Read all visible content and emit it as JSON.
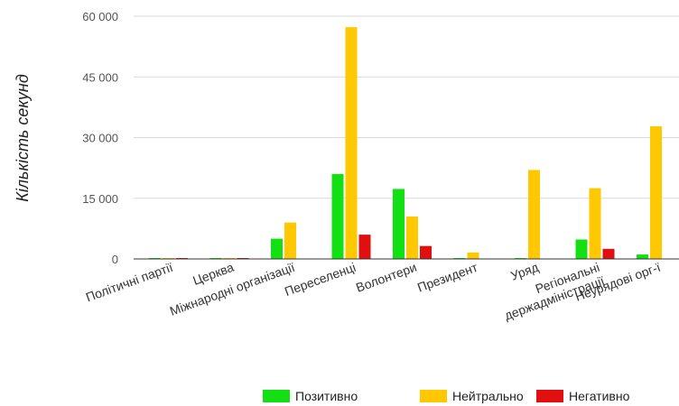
{
  "chart_data": {
    "type": "bar",
    "title": "",
    "xlabel": "",
    "ylabel": "Кількість секунд",
    "ylim": [
      0,
      60000
    ],
    "yticks": [
      0,
      15000,
      30000,
      45000,
      60000
    ],
    "ytick_labels": [
      "0",
      "15 000",
      "30 000",
      "45 000",
      "60 000"
    ],
    "grid": true,
    "legend_position": "bottom-right",
    "categories": [
      "Політичні партії",
      "Церква",
      "Міжнародні організації",
      "Переселенці",
      "Волонтери",
      "Президент",
      "Уряд",
      "Регіональні\nдержадміністрації",
      "Неурядові орг-ї"
    ],
    "series": [
      {
        "name": "Позитивно",
        "color": "#12e012",
        "values": [
          100,
          100,
          5000,
          21000,
          17300,
          100,
          100,
          4800,
          1100
        ]
      },
      {
        "name": "Нейтрально",
        "color": "#ffc800",
        "values": [
          100,
          100,
          9000,
          57300,
          10500,
          1600,
          22000,
          17500,
          32800
        ]
      },
      {
        "name": "Негативно",
        "color": "#e01010",
        "values": [
          100,
          100,
          0,
          6000,
          3200,
          0,
          0,
          2500,
          0
        ]
      }
    ]
  }
}
